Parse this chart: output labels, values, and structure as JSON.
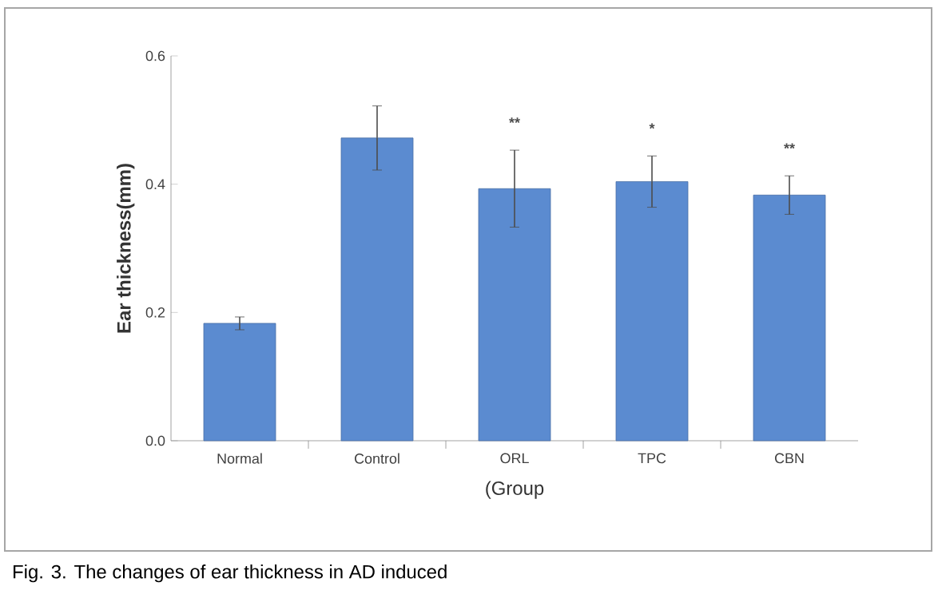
{
  "chart_data": {
    "type": "bar",
    "ylabel": "Ear thickness(mm)",
    "xlabel": "(Group",
    "categories": [
      "Normal",
      "Control",
      "ORL",
      "TPC",
      "CBN"
    ],
    "values": [
      0.183,
      0.472,
      0.393,
      0.404,
      0.383
    ],
    "errors": [
      0.01,
      0.05,
      0.06,
      0.04,
      0.03
    ],
    "color": "#5b8bd0",
    "ylim": [
      0,
      0.6
    ],
    "yticks": [
      {
        "value": 0,
        "label": "0.0"
      },
      0.2,
      0.4,
      0.6
    ],
    "annotations": [
      {
        "text": "**",
        "x": "ORL",
        "y": 0.453
      },
      {
        "text": "*",
        "x": "TPC",
        "y": 0.444
      },
      {
        "text": "**",
        "x": "CBN",
        "y": 0.413
      },
      "Fig. 3. The changes of ear thickness in AD induced"
    ]
  }
}
